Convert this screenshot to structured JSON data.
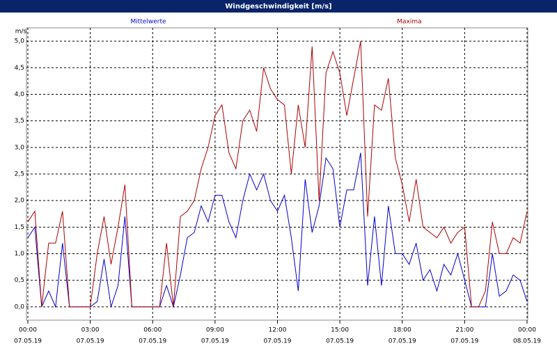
{
  "chart_data": {
    "type": "line",
    "title": "Windgeschwindigkeit [m/s]",
    "y_unit": "m/s",
    "x": [
      0,
      20,
      40,
      60,
      80,
      100,
      120,
      140,
      160,
      180,
      200,
      220,
      240,
      260,
      280,
      300,
      320,
      340,
      360,
      380,
      400,
      420,
      440,
      460,
      480,
      500,
      520,
      540,
      560,
      580,
      600,
      620,
      640,
      660,
      680,
      700,
      720,
      740,
      760,
      780,
      800,
      820,
      840,
      860,
      880,
      900,
      920,
      940,
      960,
      980,
      1000,
      1020,
      1040,
      1060,
      1080,
      1100,
      1120,
      1140,
      1160,
      1180,
      1200,
      1220,
      1240,
      1260,
      1280,
      1300,
      1320,
      1340,
      1360,
      1380,
      1400,
      1420,
      1440
    ],
    "series": [
      {
        "name": "Mittelwerte",
        "color": "#0000cc",
        "values": [
          1.3,
          1.5,
          0.0,
          0.3,
          0.0,
          1.2,
          0.0,
          0.0,
          0.0,
          0.0,
          0.1,
          0.9,
          0.0,
          0.4,
          1.7,
          0.0,
          0.0,
          0.0,
          0.0,
          0.0,
          0.4,
          0.0,
          0.6,
          1.3,
          1.4,
          1.9,
          1.6,
          2.1,
          2.1,
          1.6,
          1.3,
          2.0,
          2.5,
          2.2,
          2.5,
          2.0,
          1.8,
          2.1,
          1.3,
          0.3,
          2.4,
          1.4,
          1.9,
          2.8,
          2.6,
          1.5,
          2.2,
          2.2,
          2.9,
          0.4,
          1.7,
          0.4,
          1.9,
          1.0,
          1.0,
          0.8,
          1.2,
          0.5,
          0.7,
          0.3,
          0.8,
          0.6,
          1.0,
          0.5,
          0.0,
          0.0,
          0.0,
          1.0,
          0.2,
          0.3,
          0.6,
          0.5,
          0.1
        ]
      },
      {
        "name": "Maxima",
        "color": "#aa0000",
        "values": [
          1.6,
          1.8,
          0.0,
          1.2,
          1.2,
          1.8,
          0.0,
          0.0,
          0.0,
          0.0,
          1.0,
          1.7,
          0.8,
          1.5,
          2.3,
          0.0,
          0.0,
          0.0,
          0.0,
          0.0,
          1.2,
          0.0,
          1.7,
          1.8,
          2.0,
          2.6,
          3.0,
          3.6,
          3.8,
          2.9,
          2.6,
          3.5,
          3.7,
          3.3,
          4.5,
          4.1,
          3.9,
          3.8,
          2.5,
          3.8,
          3.0,
          4.9,
          2.0,
          4.4,
          4.8,
          4.4,
          3.6,
          4.3,
          5.0,
          1.7,
          3.8,
          3.7,
          4.3,
          2.8,
          2.3,
          1.6,
          2.4,
          1.5,
          1.4,
          1.3,
          1.5,
          1.2,
          1.4,
          1.5,
          0.0,
          0.0,
          0.3,
          1.6,
          1.0,
          1.0,
          1.3,
          1.2,
          1.8
        ]
      }
    ],
    "xlim": [
      0,
      1440
    ],
    "xticks": [
      {
        "value": 0,
        "label": "00:00",
        "date": "07.05.19"
      },
      {
        "value": 180,
        "label": "03:00",
        "date": "07.05.19"
      },
      {
        "value": 360,
        "label": "06:00",
        "date": "07.05.19"
      },
      {
        "value": 540,
        "label": "09:00",
        "date": "07.05.19"
      },
      {
        "value": 720,
        "label": "12:00",
        "date": "07.05.19"
      },
      {
        "value": 900,
        "label": "15:00",
        "date": "07.05.19"
      },
      {
        "value": 1080,
        "label": "18:00",
        "date": "07.05.19"
      },
      {
        "value": 1260,
        "label": "21:00",
        "date": "07.05.19"
      },
      {
        "value": 1440,
        "label": "00:00",
        "date": "08.05.19"
      }
    ],
    "ylim": [
      -0.25,
      5.25
    ],
    "yticks": [
      {
        "value": 0,
        "label": "0,0"
      },
      {
        "value": 0.5,
        "label": "0,5"
      },
      {
        "value": 1,
        "label": "1,0"
      },
      {
        "value": 1.5,
        "label": "1,5"
      },
      {
        "value": 2,
        "label": "2,0"
      },
      {
        "value": 2.5,
        "label": "2,5"
      },
      {
        "value": 3,
        "label": "3,0"
      },
      {
        "value": 3.5,
        "label": "3,5"
      },
      {
        "value": 4,
        "label": "4,0"
      },
      {
        "value": 4.5,
        "label": "4,5"
      },
      {
        "value": 5,
        "label": "5,0"
      }
    ],
    "grid": true
  }
}
